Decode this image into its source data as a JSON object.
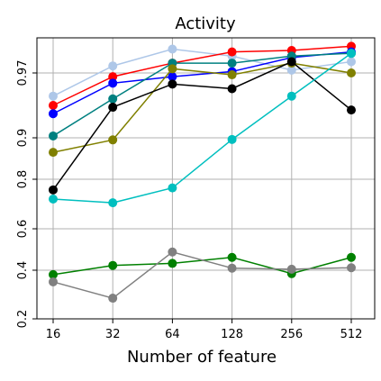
{
  "chart_data": {
    "type": "line",
    "title": "Activity",
    "xlabel": "Number of feature",
    "ylabel": "",
    "grid": true,
    "x_scale": "log2",
    "x": [
      16,
      32,
      64,
      128,
      256,
      512
    ],
    "x_tick_labels": [
      "16",
      "32",
      "64",
      "128",
      "256",
      "512"
    ],
    "y_scale": "nonlinear",
    "y_ticks": [
      0.2,
      0.4,
      0.6,
      0.8,
      0.9,
      0.97
    ],
    "y_tick_labels": [
      "0.2",
      "0.4",
      "0.6",
      "0.8",
      "0.9",
      "0.97"
    ],
    "series": [
      {
        "color": "#aec7e8",
        "values": [
          0.945,
          0.975,
          0.987,
          0.982,
          0.972,
          0.978
        ]
      },
      {
        "color": "#ff0000",
        "values": [
          0.935,
          0.966,
          0.977,
          0.985,
          0.986,
          0.989
        ]
      },
      {
        "color": "#0000ff",
        "values": [
          0.926,
          0.959,
          0.966,
          0.971,
          0.981,
          0.985
        ]
      },
      {
        "color": "#008080",
        "values": [
          0.902,
          0.942,
          0.977,
          0.977,
          0.982,
          0.984
        ]
      },
      {
        "color": "#808000",
        "values": [
          0.865,
          0.895,
          0.973,
          0.968,
          0.977,
          0.97
        ]
      },
      {
        "color": "#000000",
        "values": [
          0.757,
          0.933,
          0.958,
          0.953,
          0.978,
          0.93
        ]
      },
      {
        "color": "#00bfbf",
        "values": [
          0.72,
          0.705,
          0.765,
          0.896,
          0.945,
          0.984
        ]
      },
      {
        "color": "#008000",
        "values": [
          0.382,
          0.423,
          0.433,
          0.462,
          0.386,
          0.462
        ]
      },
      {
        "color": "#808080",
        "values": [
          0.352,
          0.285,
          0.488,
          0.41,
          0.405,
          0.412
        ]
      }
    ]
  }
}
